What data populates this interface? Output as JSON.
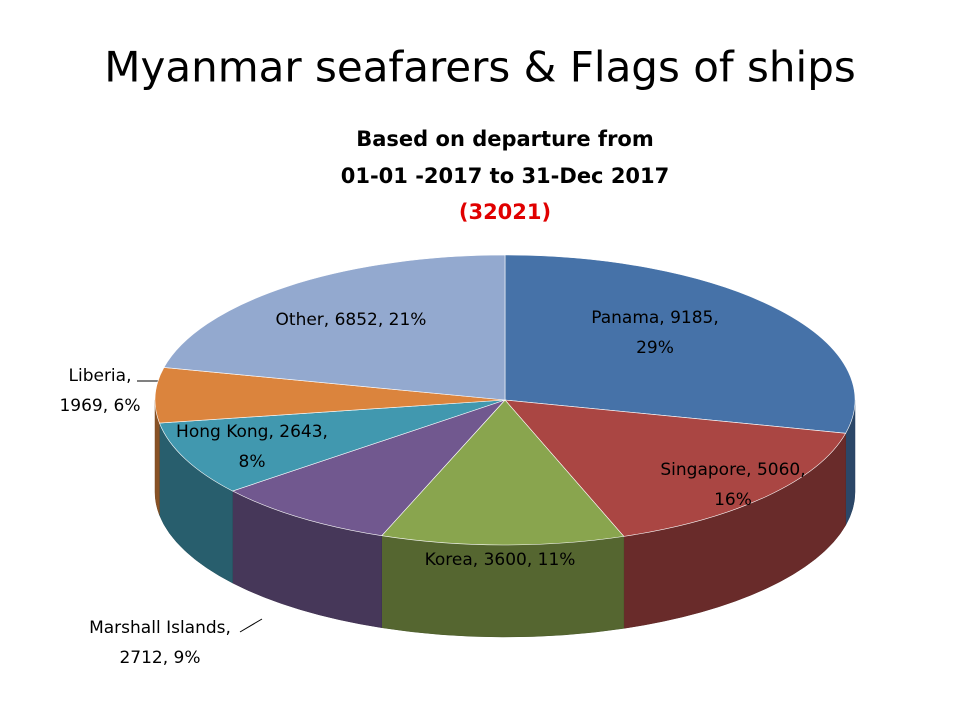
{
  "chart_data": {
    "type": "pie3d",
    "title": "Myanmar seafarers & Flags of ships",
    "subtitle_lines": [
      "Based on departure from",
      "01-01 -2017 to 31-Dec 2017"
    ],
    "total_label": "(32021)",
    "values": [
      9185,
      5060,
      3600,
      2712,
      2643,
      1969,
      6852
    ],
    "value_labels": [
      [
        "Panama, 9185,",
        "29%"
      ],
      [
        "Singapore, 5060,",
        "16%"
      ],
      [
        "Korea, 3600, 11%"
      ],
      [
        "Marshall Islands,",
        "2712, 9%"
      ],
      [
        "Hong Kong, 2643,",
        "8%"
      ],
      [
        "Liberia,",
        "1969, 6%"
      ],
      [
        "Other, 6852, 21%"
      ]
    ],
    "colors": [
      "#4672a8",
      "#aa4643",
      "#89a54e",
      "#71588f",
      "#4198af",
      "#db843d",
      "#93a9cf"
    ]
  }
}
